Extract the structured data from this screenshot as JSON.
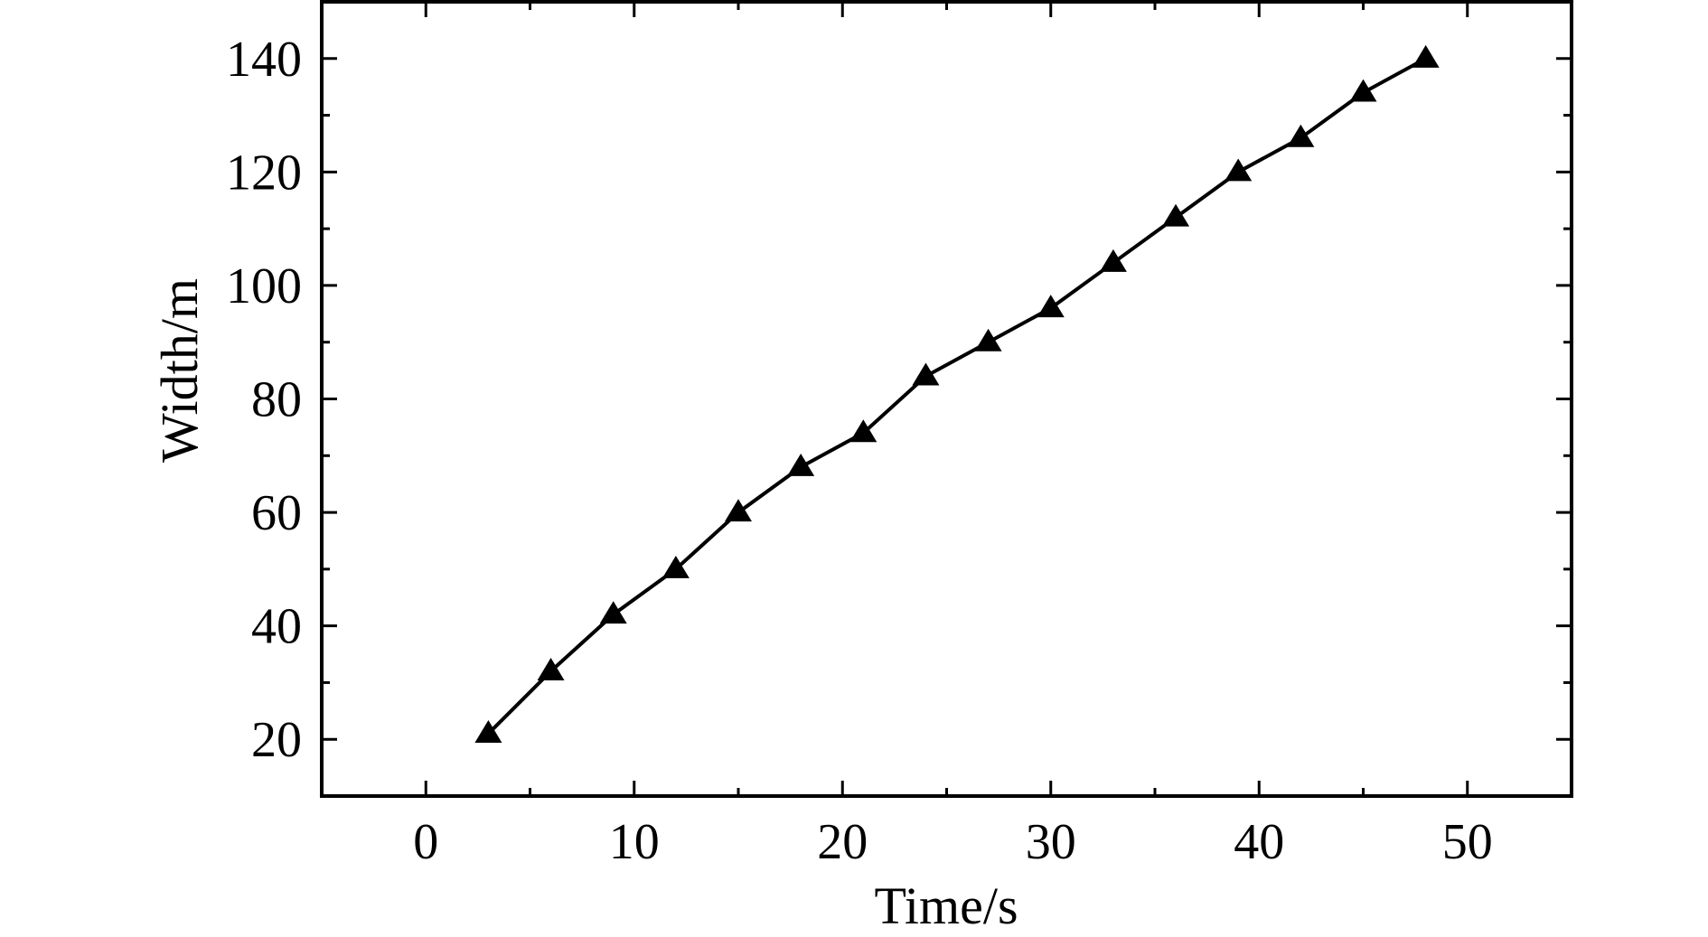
{
  "chart_data": {
    "type": "line",
    "title": "",
    "xlabel": "Time/s",
    "ylabel": "Width/m",
    "xlim": [
      -5,
      55
    ],
    "ylim": [
      10,
      150
    ],
    "xticks": [
      0,
      10,
      20,
      30,
      40,
      50
    ],
    "xtick_labels": [
      "0",
      "10",
      "20",
      "30",
      "40",
      "50"
    ],
    "yticks": [
      20,
      40,
      60,
      80,
      100,
      120,
      140
    ],
    "ytick_labels": [
      "20",
      "40",
      "60",
      "80",
      "100",
      "120",
      "140"
    ],
    "x_minor_step": 5,
    "y_minor_step": 10,
    "grid": false,
    "legend": "none",
    "marker": "filled-triangle",
    "color": "#000000",
    "series": [
      {
        "x": [
          3,
          6,
          9,
          12,
          15,
          18,
          21,
          24,
          27,
          30,
          33,
          36,
          39,
          42,
          45,
          48
        ],
        "y": [
          21,
          32,
          42,
          50,
          60,
          68,
          74,
          84,
          90,
          96,
          104,
          112,
          120,
          126,
          134,
          140
        ]
      }
    ]
  }
}
